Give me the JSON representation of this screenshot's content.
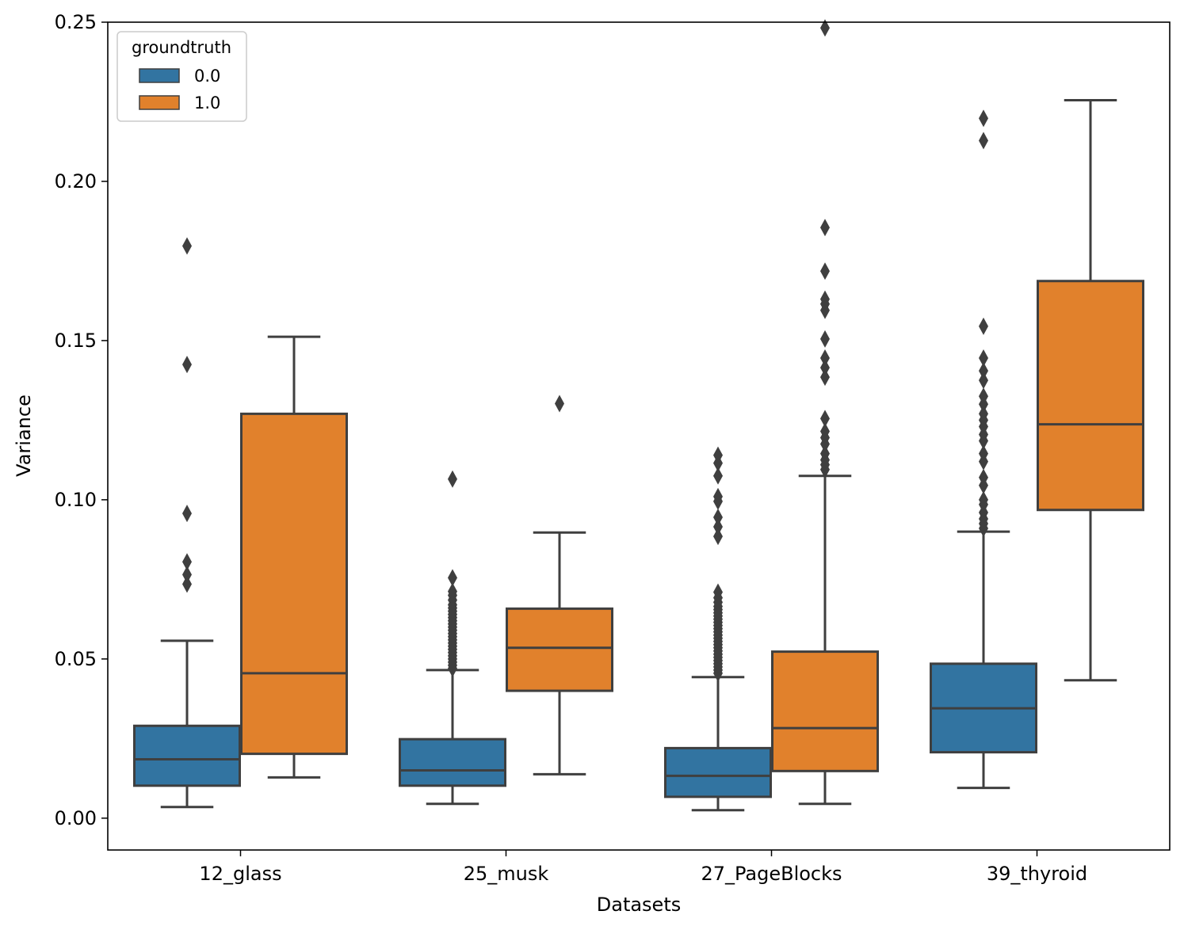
{
  "chart_data": {
    "type": "boxplot",
    "title": "",
    "xlabel": "Datasets",
    "ylabel": "Variance",
    "ylim": [
      -0.01,
      0.25
    ],
    "yticks": [
      0.0,
      0.05,
      0.1,
      0.15,
      0.2,
      0.25
    ],
    "ytick_labels": [
      "0.00",
      "0.05",
      "0.10",
      "0.15",
      "0.20",
      "0.25"
    ],
    "categories": [
      "12_glass",
      "25_musk",
      "27_PageBlocks",
      "39_thyroid"
    ],
    "legend": {
      "title": "groundtruth",
      "placement": "top-left",
      "entries": [
        {
          "label": "0.0",
          "color": "#3274a1"
        },
        {
          "label": "1.0",
          "color": "#e1812c"
        }
      ]
    },
    "series": [
      {
        "name": "0.0",
        "color": "#3274a1",
        "boxes": [
          {
            "whisker_low": 0.0035,
            "q1": 0.0102,
            "median": 0.0185,
            "q3": 0.029,
            "whisker_high": 0.0557,
            "outliers": [
              0.0735,
              0.0765,
              0.0805,
              0.0957,
              0.1425,
              0.1797
            ]
          },
          {
            "whisker_low": 0.0045,
            "q1": 0.0102,
            "median": 0.015,
            "q3": 0.0248,
            "whisker_high": 0.0465,
            "outliers": [
              0.047,
              0.048,
              0.049,
              0.05,
              0.051,
              0.052,
              0.053,
              0.054,
              0.055,
              0.056,
              0.057,
              0.058,
              0.059,
              0.06,
              0.061,
              0.062,
              0.063,
              0.064,
              0.065,
              0.066,
              0.067,
              0.0685,
              0.07,
              0.0712,
              0.0755,
              0.1065
            ]
          },
          {
            "whisker_low": 0.0025,
            "q1": 0.0067,
            "median": 0.0133,
            "q3": 0.022,
            "whisker_high": 0.0443,
            "outliers": [
              0.0455,
              0.0465,
              0.0475,
              0.0485,
              0.0495,
              0.0505,
              0.0515,
              0.0525,
              0.0535,
              0.0545,
              0.0555,
              0.0565,
              0.0575,
              0.0585,
              0.0595,
              0.0605,
              0.0615,
              0.0625,
              0.0635,
              0.0645,
              0.0655,
              0.0665,
              0.0678,
              0.0692,
              0.071,
              0.0885,
              0.0915,
              0.0945,
              0.0995,
              0.101,
              0.1075,
              0.1115,
              0.114
            ]
          },
          {
            "whisker_low": 0.0095,
            "q1": 0.0207,
            "median": 0.0345,
            "q3": 0.0485,
            "whisker_high": 0.09,
            "outliers": [
              0.091,
              0.0925,
              0.094,
              0.096,
              0.0985,
              0.1,
              0.1045,
              0.107,
              0.112,
              0.1145,
              0.1185,
              0.1205,
              0.123,
              0.125,
              0.127,
              0.13,
              0.1325,
              0.1375,
              0.1405,
              0.1445,
              0.1545,
              0.2128,
              0.2198
            ]
          }
        ]
      },
      {
        "name": "1.0",
        "color": "#e1812c",
        "boxes": [
          {
            "whisker_low": 0.0128,
            "q1": 0.0202,
            "median": 0.0455,
            "q3": 0.127,
            "whisker_high": 0.1512,
            "outliers": []
          },
          {
            "whisker_low": 0.0138,
            "q1": 0.04,
            "median": 0.0535,
            "q3": 0.0658,
            "whisker_high": 0.0897,
            "outliers": [
              0.1302
            ]
          },
          {
            "whisker_low": 0.0045,
            "q1": 0.0148,
            "median": 0.0283,
            "q3": 0.0523,
            "whisker_high": 0.1075,
            "outliers": [
              0.1095,
              0.111,
              0.1125,
              0.1145,
              0.1175,
              0.1195,
              0.1215,
              0.1255,
              0.1385,
              0.1415,
              0.1445,
              0.1505,
              0.1595,
              0.1615,
              0.163,
              0.1718,
              0.1855,
              0.2482
            ]
          },
          {
            "whisker_low": 0.0433,
            "q1": 0.0968,
            "median": 0.1237,
            "q3": 0.1687,
            "whisker_high": 0.2255,
            "outliers": []
          }
        ]
      }
    ]
  }
}
